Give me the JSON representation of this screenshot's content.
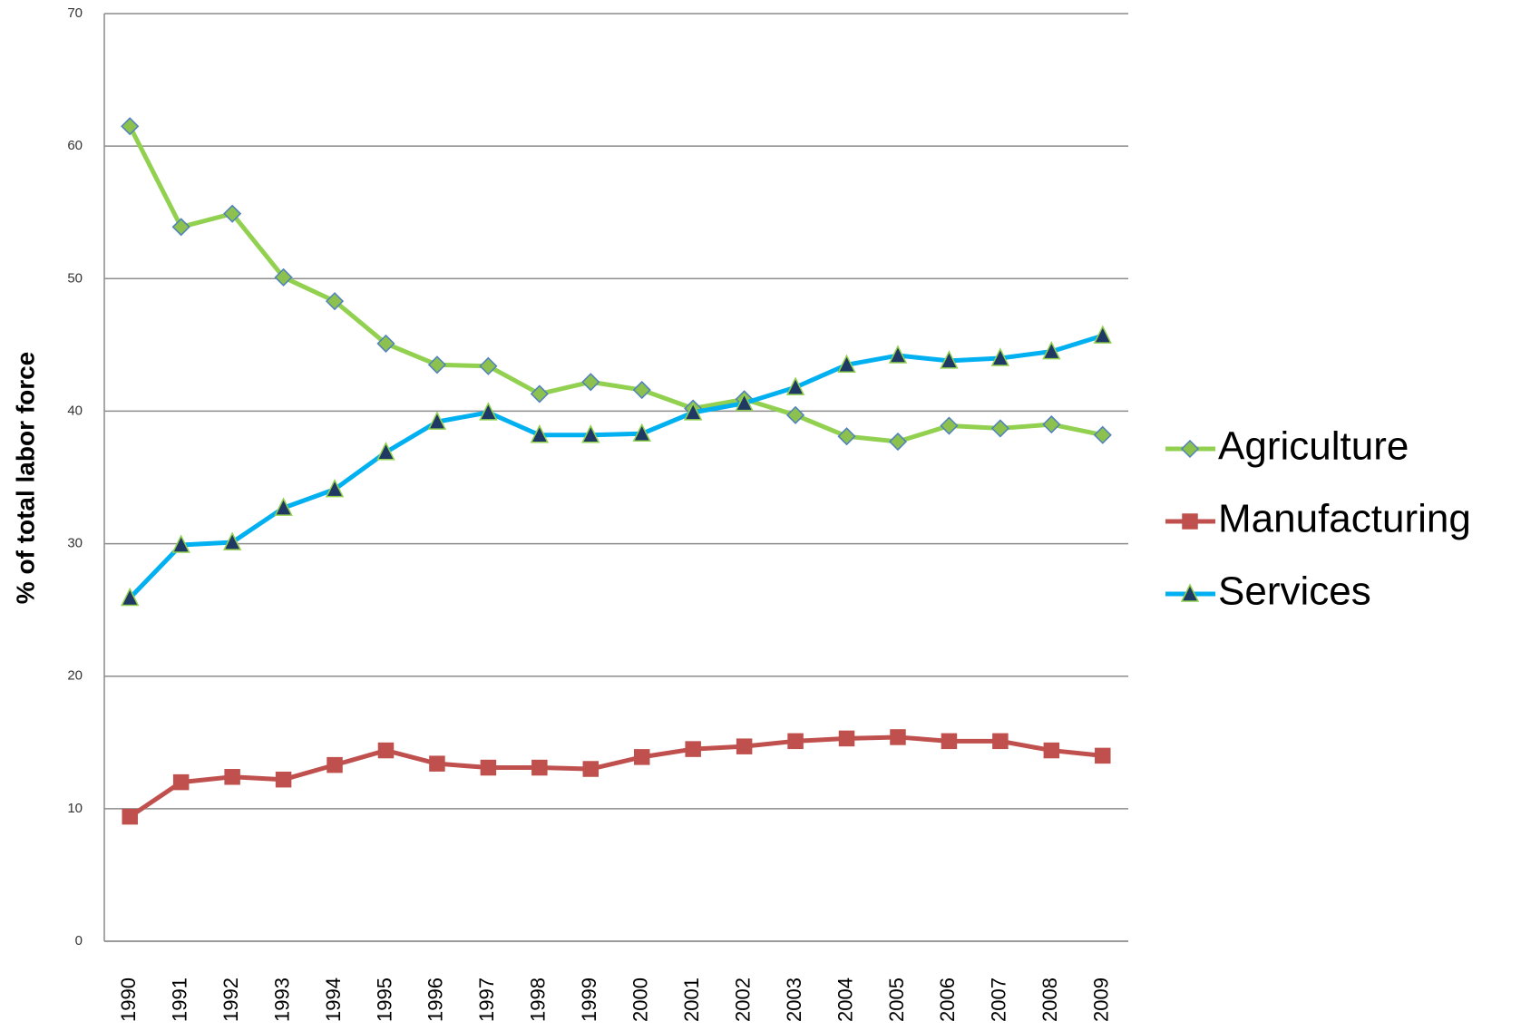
{
  "chart_data": {
    "type": "line",
    "y_label": "% of total labor force",
    "categories": [
      "1990",
      "1991",
      "1992",
      "1993",
      "1994",
      "1995",
      "1996",
      "1997",
      "1998",
      "1999",
      "2000",
      "2001",
      "2002",
      "2003",
      "2004",
      "2005",
      "2006",
      "2007",
      "2008",
      "2009"
    ],
    "series": [
      {
        "name": "Agriculture",
        "color": "#92d050",
        "marker": "diamond",
        "values": [
          61.5,
          53.9,
          54.9,
          50.1,
          48.3,
          45.1,
          43.5,
          43.4,
          41.3,
          42.2,
          41.6,
          40.2,
          40.9,
          39.7,
          38.1,
          37.7,
          38.9,
          38.7,
          39.0,
          38.2
        ]
      },
      {
        "name": "Manufacturing",
        "color": "#c0504d",
        "marker": "square",
        "values": [
          9.4,
          12.0,
          12.4,
          12.2,
          13.3,
          14.4,
          13.4,
          13.1,
          13.1,
          13.0,
          13.9,
          14.5,
          14.7,
          15.1,
          15.3,
          15.4,
          15.1,
          15.1,
          14.4,
          14.0
        ]
      },
      {
        "name": "Services",
        "color": "#00b0f0",
        "marker": "triangle",
        "values": [
          25.9,
          29.9,
          30.1,
          32.7,
          34.1,
          36.9,
          39.2,
          39.9,
          38.2,
          38.2,
          38.3,
          39.9,
          40.6,
          41.8,
          43.5,
          44.2,
          43.8,
          44.0,
          44.5,
          45.7
        ]
      }
    ],
    "ylim": [
      0,
      70
    ],
    "yticks": [
      0,
      10,
      20,
      30,
      40,
      50,
      60,
      70
    ],
    "grid": true,
    "legend": "right"
  }
}
